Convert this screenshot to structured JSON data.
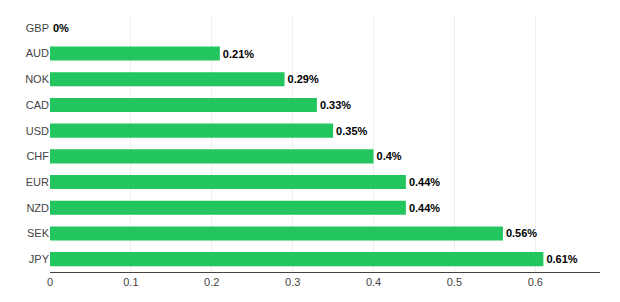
{
  "chart_data": {
    "type": "bar",
    "orientation": "horizontal",
    "categories": [
      "GBP",
      "AUD",
      "NOK",
      "CAD",
      "USD",
      "CHF",
      "EUR",
      "NZD",
      "SEK",
      "JPY"
    ],
    "values": [
      0.0,
      0.21,
      0.29,
      0.33,
      0.35,
      0.4,
      0.44,
      0.44,
      0.56,
      0.61
    ],
    "value_labels": [
      "0%",
      "0.21%",
      "0.29%",
      "0.33%",
      "0.35%",
      "0.4%",
      "0.44%",
      "0.44%",
      "0.56%",
      "0.61%"
    ],
    "data_labels": true,
    "color": "#22C55E",
    "xlim": [
      0,
      0.68
    ],
    "xticks": [
      0,
      0.1,
      0.2,
      0.3,
      0.4,
      0.5,
      0.6
    ],
    "grid": true
  }
}
